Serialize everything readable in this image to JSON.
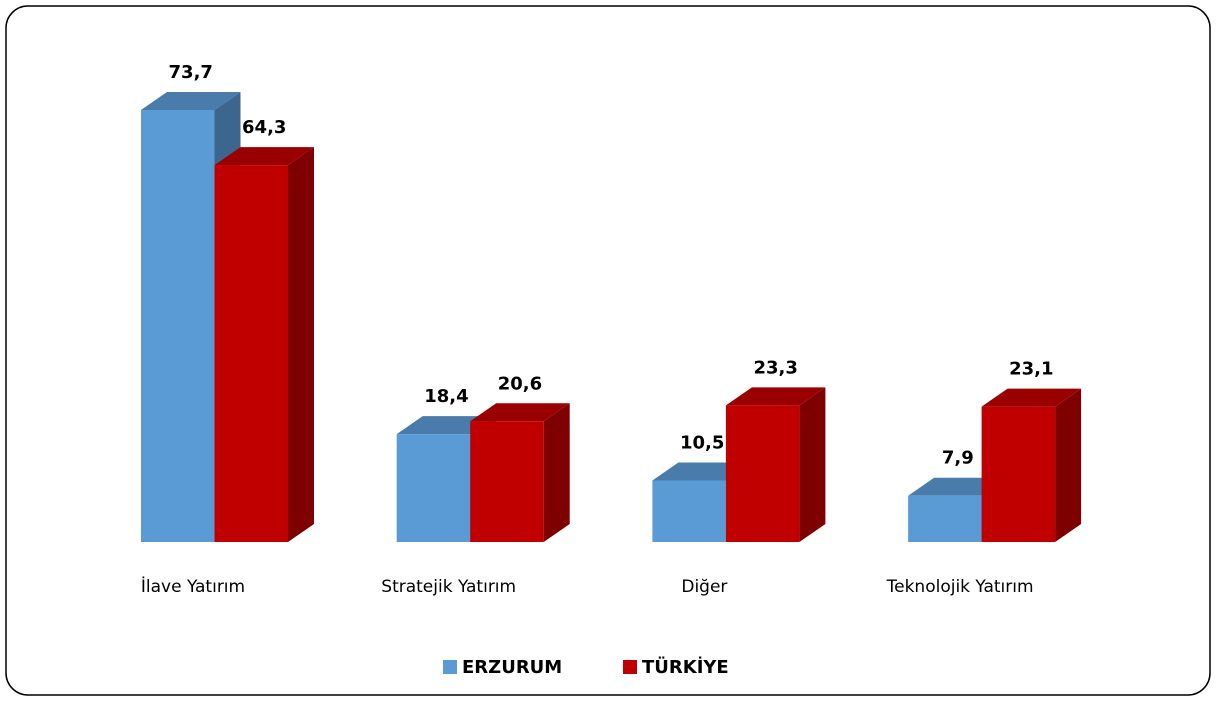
{
  "chart_data": {
    "type": "bar3d",
    "categories": [
      "İlave Yatırım",
      "Stratejik Yatırım",
      "Diğer",
      "Teknolojik Yatırım"
    ],
    "series": [
      {
        "name": "ERZURUM",
        "color": "#5b9bd5",
        "values": [
          73.7,
          18.4,
          10.5,
          7.9
        ],
        "value_labels": [
          "73,7",
          "18,4",
          "10,5",
          "7,9"
        ]
      },
      {
        "name": "TÜRKİYE",
        "color": "#c00000",
        "values": [
          64.3,
          20.6,
          23.3,
          23.1
        ],
        "value_labels": [
          "64,3",
          "20,6",
          "23,3",
          "23,1"
        ]
      }
    ]
  }
}
